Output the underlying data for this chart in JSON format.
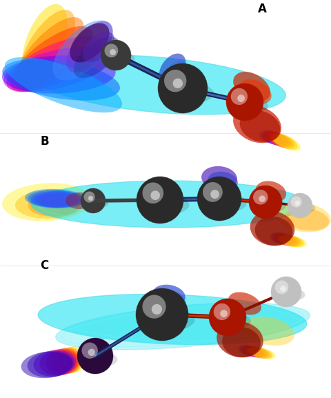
{
  "bg_color": "#ffffff",
  "label_A": "A",
  "label_B": "B",
  "label_C": "C",
  "label_fontsize": 12,
  "label_fontweight": "bold",
  "cyan_color": "#00e0ee",
  "cyan_edge": "#40d8e8",
  "dark_gray": "#2a2a2a",
  "mid_gray": "#404040",
  "red_orb": "#cc1800",
  "red_dark": "#881000",
  "gray_h": "#b8b8b8",
  "purple_orb": "#4a1060",
  "navy_bond": "#1a2850"
}
